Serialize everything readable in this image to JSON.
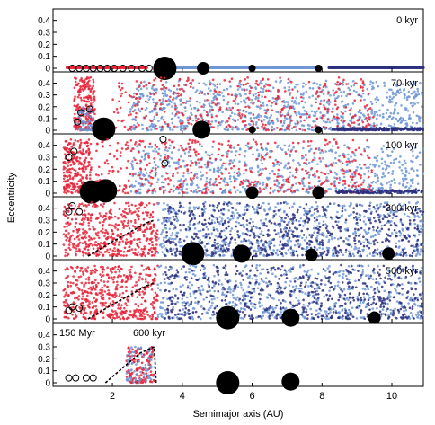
{
  "chart_data": {
    "type": "scatter",
    "xlabel": "Semimajor axis (AU)",
    "ylabel": "Eccentricity",
    "xlim": [
      0.3,
      10.9
    ],
    "ylim": [
      0,
      0.45
    ],
    "x_ticks": [
      "2",
      "4",
      "6",
      "8",
      "10"
    ],
    "y_ticks": [
      "0",
      "0.1",
      "0.2",
      "0.3",
      "0.4"
    ],
    "colors": {
      "red_particles": "#e8253a",
      "light_blue_particles": "#6f96d4",
      "dark_blue_particles": "#2b2f7e",
      "planets": "#000000",
      "embryos_outline": "#000000",
      "outline_curves": "#000000"
    },
    "panels": [
      {
        "label": "0 kyr",
        "disk_bands": [
          {
            "color": "red",
            "x_range": [
              0.7,
              3.0
            ],
            "e": 0.005
          },
          {
            "color": "light_blue",
            "x_range": [
              3.8,
              8.0
            ],
            "e": 0.005
          },
          {
            "color": "dark_blue",
            "x_range": [
              8.2,
              10.9
            ],
            "e": 0.005
          }
        ],
        "planets": [
          {
            "a": 3.5,
            "e": 0.0,
            "size": "large"
          },
          {
            "a": 4.6,
            "e": 0.0,
            "size": "small"
          },
          {
            "a": 6.0,
            "e": 0.0,
            "size": "tiny"
          },
          {
            "a": 7.9,
            "e": 0.0,
            "size": "tiny"
          }
        ],
        "embryos": [
          0.85,
          1.05,
          1.25,
          1.45,
          1.65,
          1.85,
          2.05,
          2.3,
          2.55,
          2.85,
          3.05
        ],
        "clouds": []
      },
      {
        "label": "70 kyr",
        "planets": [
          {
            "a": 1.75,
            "e": 0.01,
            "size": "large"
          },
          {
            "a": 4.55,
            "e": 0.005,
            "size": "medium"
          },
          {
            "a": 6.0,
            "e": 0.005,
            "size": "tiny"
          },
          {
            "a": 7.9,
            "e": 0.005,
            "size": "tiny"
          }
        ],
        "embryos": [
          {
            "a": 1.35,
            "e": 0.18
          },
          {
            "a": 1.0,
            "e": 0.07
          },
          {
            "a": 1.1,
            "e": 0.15
          }
        ],
        "clouds": [
          {
            "color": "red",
            "x_range": [
              0.9,
              1.5
            ],
            "e_max": 0.45,
            "count": 220
          },
          {
            "color": "light_blue",
            "x_range": [
              1.0,
              1.5
            ],
            "e_max": 0.2,
            "count": 60
          },
          {
            "color": "light_blue",
            "x_range": [
              2.5,
              10.9
            ],
            "e_max": 0.42,
            "count": 900
          },
          {
            "color": "red",
            "x_range": [
              2.0,
              9.5
            ],
            "e_max": 0.45,
            "count": 400
          },
          {
            "color": "dark_blue",
            "x_range": [
              8.3,
              10.9
            ],
            "e_max": 0.02,
            "count": 200
          }
        ]
      },
      {
        "label": "100 kyr",
        "planets": [
          {
            "a": 1.4,
            "e": 0.01,
            "size": "large"
          },
          {
            "a": 1.8,
            "e": 0.02,
            "size": "large"
          },
          {
            "a": 6.0,
            "e": 0.005,
            "size": "small"
          },
          {
            "a": 7.9,
            "e": 0.005,
            "size": "small"
          }
        ],
        "embryos": [
          {
            "a": 0.75,
            "e": 0.3
          },
          {
            "a": 0.9,
            "e": 0.35
          },
          {
            "a": 3.5,
            "e": 0.25
          },
          {
            "a": 3.45,
            "e": 0.45
          }
        ],
        "clouds": [
          {
            "color": "red",
            "x_range": [
              0.6,
              1.4
            ],
            "e_max": 0.45,
            "count": 260
          },
          {
            "color": "light_blue",
            "x_range": [
              2.5,
              10.9
            ],
            "e_max": 0.4,
            "count": 700
          },
          {
            "color": "red",
            "x_range": [
              1.5,
              9.5
            ],
            "e_max": 0.45,
            "count": 450
          },
          {
            "color": "dark_blue",
            "x_range": [
              8.4,
              10.9
            ],
            "e_max": 0.03,
            "count": 150
          }
        ]
      },
      {
        "label": "300 kyr",
        "planets": [
          {
            "a": 4.3,
            "e": 0.02,
            "size": "large"
          },
          {
            "a": 5.7,
            "e": 0.02,
            "size": "medium"
          },
          {
            "a": 7.7,
            "e": 0.01,
            "size": "small"
          },
          {
            "a": 9.9,
            "e": 0.02,
            "size": "small"
          }
        ],
        "embryos": [
          {
            "a": 0.75,
            "e": 0.37
          },
          {
            "a": 0.85,
            "e": 0.42
          },
          {
            "a": 1.05,
            "e": 0.37
          }
        ],
        "curve": {
          "a": [
            1.3,
            1.6,
            2.0,
            2.5,
            3.0,
            3.2
          ],
          "e": [
            0.0,
            0.05,
            0.12,
            0.2,
            0.28,
            0.3
          ]
        },
        "clouds": [
          {
            "color": "red",
            "x_range": [
              0.6,
              3.3
            ],
            "e_max": 0.45,
            "count": 500
          },
          {
            "color": "light_blue",
            "x_range": [
              3.3,
              10.9
            ],
            "e_max": 0.45,
            "count": 700
          },
          {
            "color": "dark_blue",
            "x_range": [
              3.5,
              10.9
            ],
            "e_max": 0.45,
            "count": 600
          }
        ]
      },
      {
        "label": "500 kyr",
        "planets": [
          {
            "a": 5.3,
            "e": 0.01,
            "size": "large"
          },
          {
            "a": 7.1,
            "e": 0.01,
            "size": "medium"
          },
          {
            "a": 9.5,
            "e": 0.01,
            "size": "small"
          }
        ],
        "embryos": [
          {
            "a": 0.75,
            "e": 0.07
          },
          {
            "a": 0.85,
            "e": 0.1
          },
          {
            "a": 1.05,
            "e": 0.09
          }
        ],
        "curve": {
          "a": [
            1.3,
            1.6,
            2.0,
            2.5,
            3.0,
            3.2
          ],
          "e": [
            0.0,
            0.05,
            0.12,
            0.2,
            0.28,
            0.3
          ]
        },
        "clouds": [
          {
            "color": "red",
            "x_range": [
              0.6,
              3.3
            ],
            "e_max": 0.45,
            "count": 500
          },
          {
            "color": "light_blue",
            "x_range": [
              3.3,
              10.9
            ],
            "e_max": 0.45,
            "count": 650
          },
          {
            "color": "dark_blue",
            "x_range": [
              3.5,
              10.9
            ],
            "e_max": 0.45,
            "count": 550
          }
        ]
      },
      {
        "label": "",
        "annotations": [
          "150 Myr",
          "600 kyr"
        ],
        "planets": [
          {
            "a": 5.3,
            "e": 0.0,
            "size": "large"
          },
          {
            "a": 7.1,
            "e": 0.01,
            "size": "medium"
          }
        ],
        "embryos": [
          {
            "a": 0.75,
            "e": 0.04
          },
          {
            "a": 0.95,
            "e": 0.04
          },
          {
            "a": 1.25,
            "e": 0.04
          },
          {
            "a": 1.45,
            "e": 0.04
          }
        ],
        "curve": {
          "a": [
            1.8,
            2.0,
            2.4,
            2.8,
            3.2,
            3.25
          ],
          "e": [
            0.0,
            0.05,
            0.15,
            0.25,
            0.3,
            0.0
          ]
        },
        "clouds": [
          {
            "color": "red",
            "x_range": [
              2.4,
              3.2
            ],
            "e_max": 0.3,
            "count": 150
          },
          {
            "color": "light_blue",
            "x_range": [
              2.4,
              3.2
            ],
            "e_max": 0.3,
            "count": 80
          }
        ]
      }
    ]
  }
}
